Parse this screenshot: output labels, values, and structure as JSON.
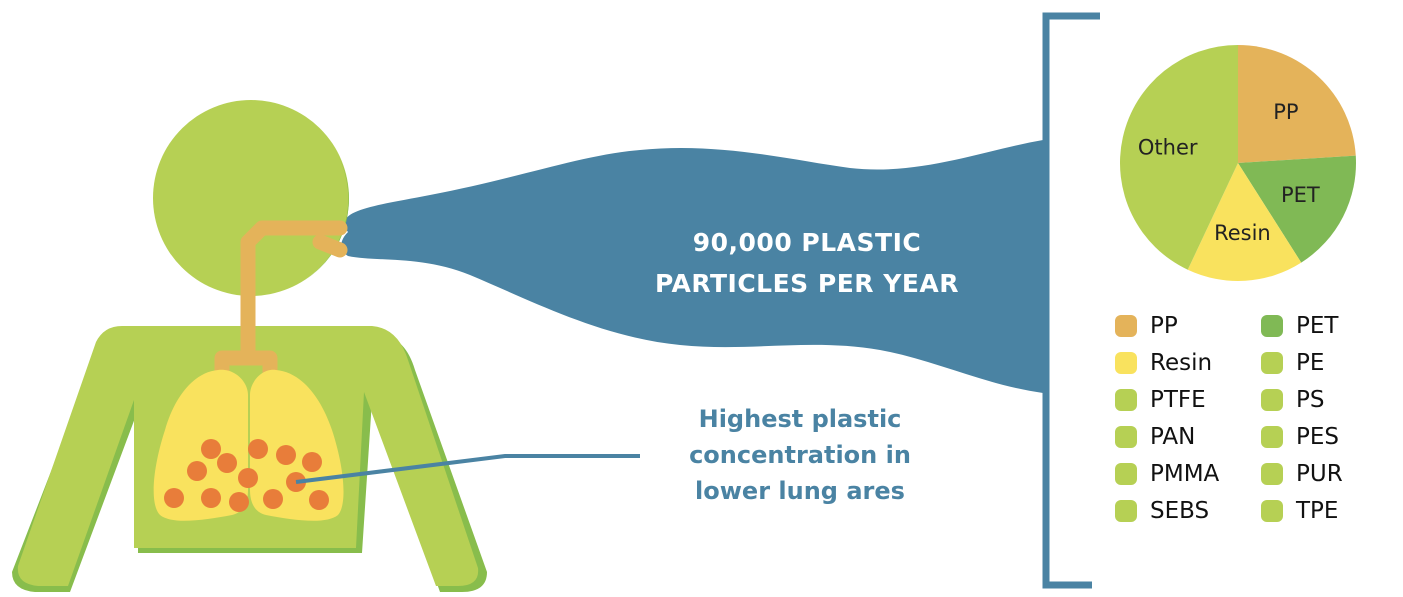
{
  "headline": {
    "line1": "90,000 PLASTIC",
    "line2": "PARTICLES PER YEAR"
  },
  "callout": {
    "line1": "Highest plastic",
    "line2": "concentration in",
    "line3": "lower lung ares"
  },
  "colors": {
    "person_green": "#b6d054",
    "person_shadow": "#88bd4c",
    "lungs": "#f9e25e",
    "particles": "#e87d3a",
    "airway": "#e4b35a",
    "breath": "#4a83a3",
    "pp": "#e4b35a",
    "pet": "#80b955",
    "resin": "#f9e25e",
    "other": "#b6d054"
  },
  "chart_data": {
    "type": "pie",
    "slices": [
      {
        "label": "PP",
        "value": 24,
        "color": "#e4b35a"
      },
      {
        "label": "PET",
        "value": 17,
        "color": "#80b955"
      },
      {
        "label": "Resin",
        "value": 16,
        "color": "#f9e25e"
      },
      {
        "label": "Other",
        "value": 43,
        "color": "#b6d054"
      }
    ],
    "legend_position": "bottom",
    "legend": [
      {
        "label": "PP",
        "color": "#e4b35a"
      },
      {
        "label": "PET",
        "color": "#80b955"
      },
      {
        "label": "Resin",
        "color": "#f9e25e"
      },
      {
        "label": "PE",
        "color": "#b6d054"
      },
      {
        "label": "PTFE",
        "color": "#b6d054"
      },
      {
        "label": "PS",
        "color": "#b6d054"
      },
      {
        "label": "PAN",
        "color": "#b6d054"
      },
      {
        "label": "PES",
        "color": "#b6d054"
      },
      {
        "label": "PMMA",
        "color": "#b6d054"
      },
      {
        "label": "PUR",
        "color": "#b6d054"
      },
      {
        "label": "SEBS",
        "color": "#b6d054"
      },
      {
        "label": "TPE",
        "color": "#b6d054"
      }
    ]
  }
}
